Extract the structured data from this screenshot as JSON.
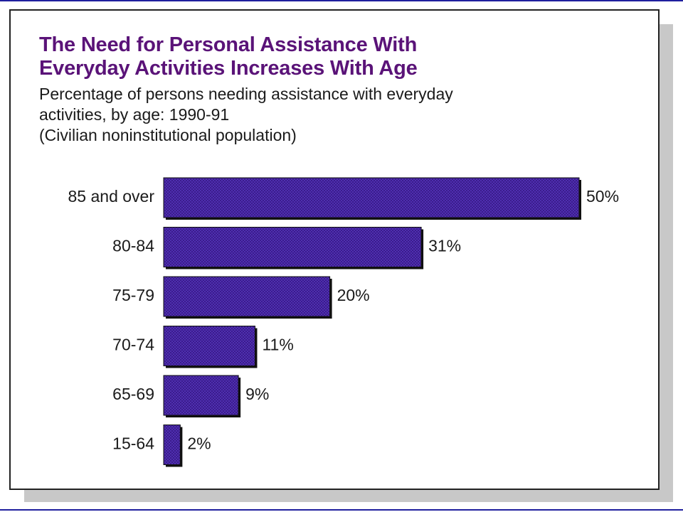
{
  "chart_data": {
    "type": "bar",
    "orientation": "horizontal",
    "title": "The Need for Personal Assistance With Everyday Activities Increases With Age",
    "title_lines": [
      "The Need for Personal Assistance With",
      "Everyday Activities Increases With Age"
    ],
    "subtitle_lines": [
      "Percentage of persons needing assistance with everyday",
      "activities, by age:  1990-91",
      "(Civilian noninstitutional population)"
    ],
    "categories": [
      "85 and over",
      "80-84",
      "75-79",
      "70-74",
      "65-69",
      "15-64"
    ],
    "values": [
      50,
      31,
      20,
      11,
      9,
      2
    ],
    "value_labels": [
      "50%",
      "31%",
      "20%",
      "11%",
      "9%",
      "2%"
    ],
    "unit": "%",
    "xlim": [
      0,
      50
    ],
    "grid": false,
    "legend": "none",
    "bar_color": "#4a2aa8",
    "bar_border_color": "#111111",
    "title_color": "#5a1378"
  }
}
